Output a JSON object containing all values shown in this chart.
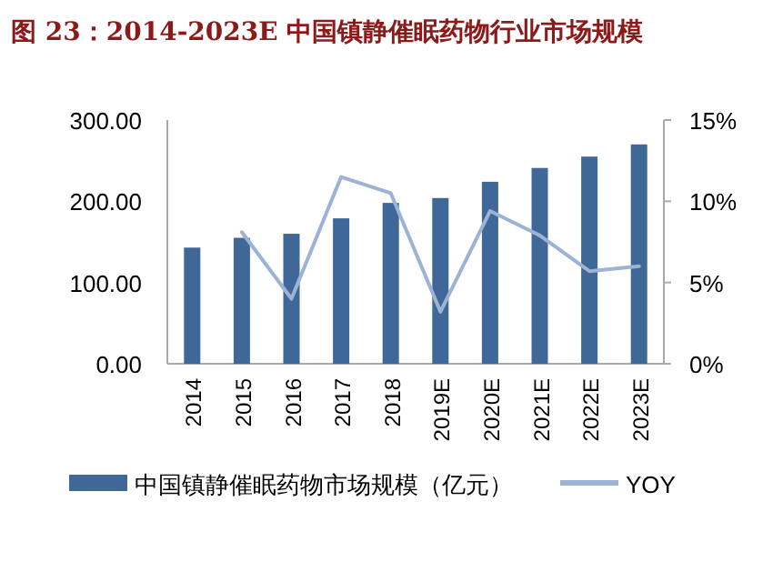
{
  "chart_data": {
    "type": "bar",
    "title": "图 23：2014-2023E 中国镇静催眠药物行业市场规模",
    "categories": [
      "2014",
      "2015",
      "2016",
      "2017",
      "2018",
      "2019E",
      "2020E",
      "2021E",
      "2022E",
      "2023E"
    ],
    "series": [
      {
        "name": "中国镇静催眠药物市场规模（亿元）",
        "color": "#3f6899",
        "values": [
          143,
          155,
          160,
          179,
          198,
          204,
          224,
          241,
          255,
          270
        ]
      },
      {
        "name": "YOY",
        "type": "line",
        "axis": "y2",
        "color": "#9db3d6",
        "values": [
          null,
          8.1,
          4.0,
          11.5,
          10.5,
          3.2,
          9.4,
          7.9,
          5.7,
          6.0
        ]
      }
    ],
    "ylim": [
      0,
      300
    ],
    "yticks": [
      {
        "value": 0,
        "label": "0.00"
      },
      {
        "value": 100,
        "label": "100.00"
      },
      {
        "value": 200,
        "label": "200.00"
      },
      {
        "value": 300,
        "label": "300.00"
      }
    ],
    "y2lim": [
      0,
      15
    ],
    "y2ticks": [
      {
        "value": 0,
        "label": "0%"
      },
      {
        "value": 5,
        "label": "5%"
      },
      {
        "value": 10,
        "label": "10%"
      },
      {
        "value": 15,
        "label": "15%"
      }
    ],
    "grid": false,
    "legend": "bottom",
    "marker": "none"
  }
}
